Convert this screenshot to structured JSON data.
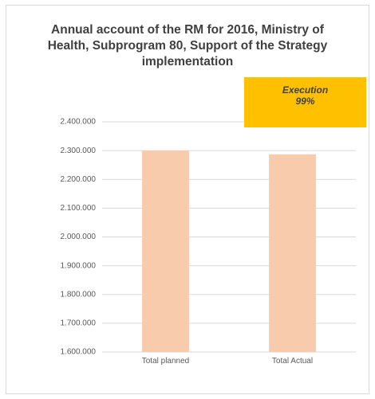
{
  "chart_data": {
    "type": "bar",
    "title": "Annual account of the RM for 2016, Ministry of Health, Subprogram 80, Support of the Strategy implementation",
    "annotation": [
      "Execution",
      "99%"
    ],
    "categories": [
      "Total planned",
      "Total Actual"
    ],
    "values": [
      2300000,
      2287000
    ],
    "color": "#f8cbad",
    "ylim": [
      1600000,
      2400000
    ],
    "yticks": [
      {
        "value": 1600000,
        "label": "1.600.000"
      },
      {
        "value": 1700000,
        "label": "1.700.000"
      },
      {
        "value": 1800000,
        "label": "1.800.000"
      },
      {
        "value": 1900000,
        "label": "1.900.000"
      },
      {
        "value": 2000000,
        "label": "2.000.000"
      },
      {
        "value": 2100000,
        "label": "2.100.000"
      },
      {
        "value": 2200000,
        "label": "2.200.000"
      },
      {
        "value": 2300000,
        "label": "2.300.000"
      },
      {
        "value": 2400000,
        "label": "2.400.000"
      }
    ],
    "grid": true
  }
}
